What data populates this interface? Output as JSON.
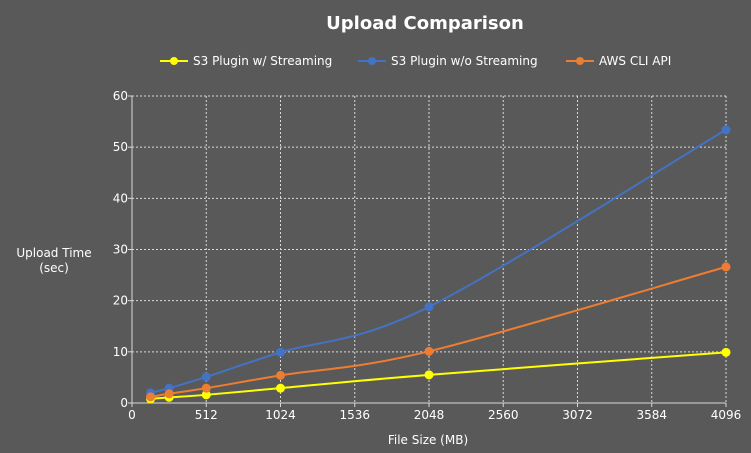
{
  "chart_data": {
    "type": "line",
    "title": "Upload Comparison",
    "xlabel": "File Size (MB)",
    "ylabel_lines": [
      "Upload Time",
      "(sec)"
    ],
    "xlim": [
      0,
      4096
    ],
    "ylim": [
      0,
      60
    ],
    "x_ticks": [
      0,
      512,
      1024,
      1536,
      2048,
      2560,
      3072,
      3584,
      4096
    ],
    "y_ticks": [
      0,
      10,
      20,
      30,
      40,
      50,
      60
    ],
    "grid": true,
    "legend_position": "top",
    "series": [
      {
        "name": "S3 Plugin w/ Streaming",
        "color": "#ffff00",
        "x": [
          128,
          256,
          512,
          1024,
          2048,
          4096
        ],
        "y": [
          0.8,
          1.1,
          1.6,
          2.9,
          5.5,
          9.9
        ]
      },
      {
        "name": "S3 Plugin w/o Streaming",
        "color": "#4472c4",
        "x": [
          128,
          256,
          512,
          1024,
          2048,
          4096
        ],
        "y": [
          2.0,
          2.9,
          5.1,
          9.9,
          18.8,
          53.4
        ]
      },
      {
        "name": "AWS CLI API",
        "color": "#ed7d31",
        "x": [
          128,
          256,
          512,
          1024,
          2048,
          4096
        ],
        "y": [
          1.2,
          1.8,
          2.9,
          5.4,
          10.1,
          26.6
        ]
      }
    ]
  }
}
